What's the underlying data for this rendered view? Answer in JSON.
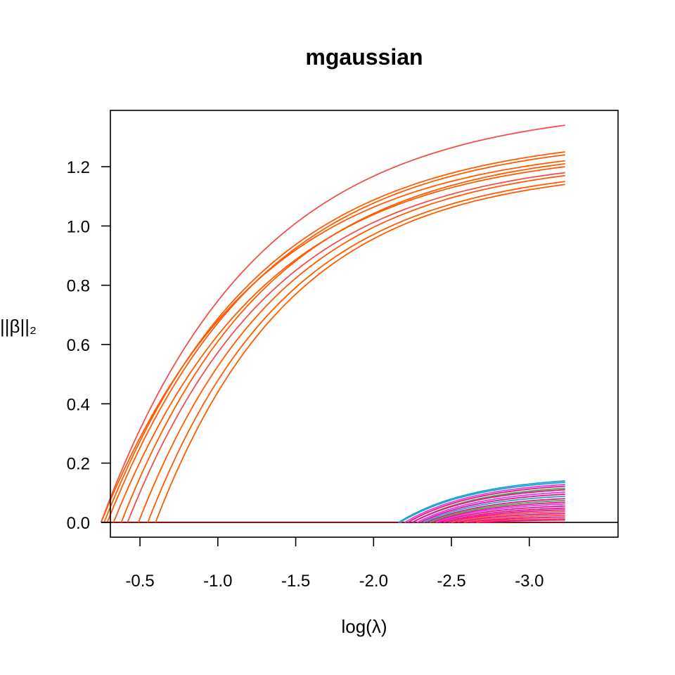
{
  "chart_data": {
    "type": "line",
    "title": "mgaussian",
    "xlabel": "log(λ)",
    "ylabel": "||β||₂",
    "x_axis_reversed": true,
    "xlim": [
      -0.31,
      -3.57
    ],
    "ylim": [
      -0.05,
      1.39
    ],
    "xticks": [
      -0.5,
      -1.0,
      -1.5,
      -2.0,
      -2.5,
      -3.0
    ],
    "xtick_labels": [
      "-0.5",
      "-1.0",
      "-1.5",
      "-2.0",
      "-2.5",
      "-3.0"
    ],
    "yticks": [
      0.0,
      0.2,
      0.4,
      0.6,
      0.8,
      1.0,
      1.2
    ],
    "ytick_labels": [
      "0.0",
      "0.2",
      "0.4",
      "0.6",
      "0.8",
      "1.0",
      "1.2"
    ],
    "x_end": -3.23,
    "zero_line": true,
    "grid": false,
    "legend": "none",
    "colors": {
      "primary": "#FF5A00",
      "top": "#F24E4E",
      "blue": "#1EA7D6",
      "pink": "#F0108C",
      "magenta": "#E040E0",
      "green": "#33B44A",
      "baseline": "#7A1010"
    },
    "primary_series": [
      {
        "start": -0.25,
        "end": 1.34,
        "color": "top"
      },
      {
        "start": -0.27,
        "end": 1.25,
        "color": "primary"
      },
      {
        "start": -0.29,
        "end": 1.24,
        "color": "primary"
      },
      {
        "start": -0.25,
        "end": 1.22,
        "color": "primary"
      },
      {
        "start": -0.38,
        "end": 1.21,
        "color": "primary"
      },
      {
        "start": -0.33,
        "end": 1.2,
        "color": "primary"
      },
      {
        "start": -0.42,
        "end": 1.18,
        "color": "top"
      },
      {
        "start": -0.49,
        "end": 1.17,
        "color": "primary"
      },
      {
        "start": -0.55,
        "end": 1.15,
        "color": "primary"
      },
      {
        "start": -0.6,
        "end": 1.14,
        "color": "primary"
      }
    ],
    "minor_series": [
      {
        "start": -2.16,
        "end": 0.14,
        "color": "blue"
      },
      {
        "start": -2.17,
        "end": 0.135,
        "color": "blue"
      },
      {
        "start": -2.2,
        "end": 0.128,
        "color": "magenta"
      },
      {
        "start": -2.22,
        "end": 0.122,
        "color": "pink"
      },
      {
        "start": -2.25,
        "end": 0.115,
        "color": "green"
      },
      {
        "start": -2.25,
        "end": 0.11,
        "color": "pink"
      },
      {
        "start": -2.28,
        "end": 0.102,
        "color": "magenta"
      },
      {
        "start": -2.3,
        "end": 0.095,
        "color": "pink"
      },
      {
        "start": -2.32,
        "end": 0.088,
        "color": "blue"
      },
      {
        "start": -2.34,
        "end": 0.08,
        "color": "pink"
      },
      {
        "start": -2.36,
        "end": 0.074,
        "color": "green"
      },
      {
        "start": -2.38,
        "end": 0.068,
        "color": "pink"
      },
      {
        "start": -2.4,
        "end": 0.062,
        "color": "magenta"
      },
      {
        "start": -2.42,
        "end": 0.055,
        "color": "pink"
      },
      {
        "start": -2.45,
        "end": 0.048,
        "color": "pink"
      },
      {
        "start": -2.48,
        "end": 0.042,
        "color": "pink"
      },
      {
        "start": -2.5,
        "end": 0.036,
        "color": "top"
      },
      {
        "start": -2.54,
        "end": 0.03,
        "color": "pink"
      },
      {
        "start": -2.58,
        "end": 0.024,
        "color": "top"
      },
      {
        "start": -2.62,
        "end": 0.018,
        "color": "pink"
      },
      {
        "start": -2.66,
        "end": 0.012,
        "color": "top"
      },
      {
        "start": -2.7,
        "end": 0.008,
        "color": "pink"
      }
    ]
  }
}
